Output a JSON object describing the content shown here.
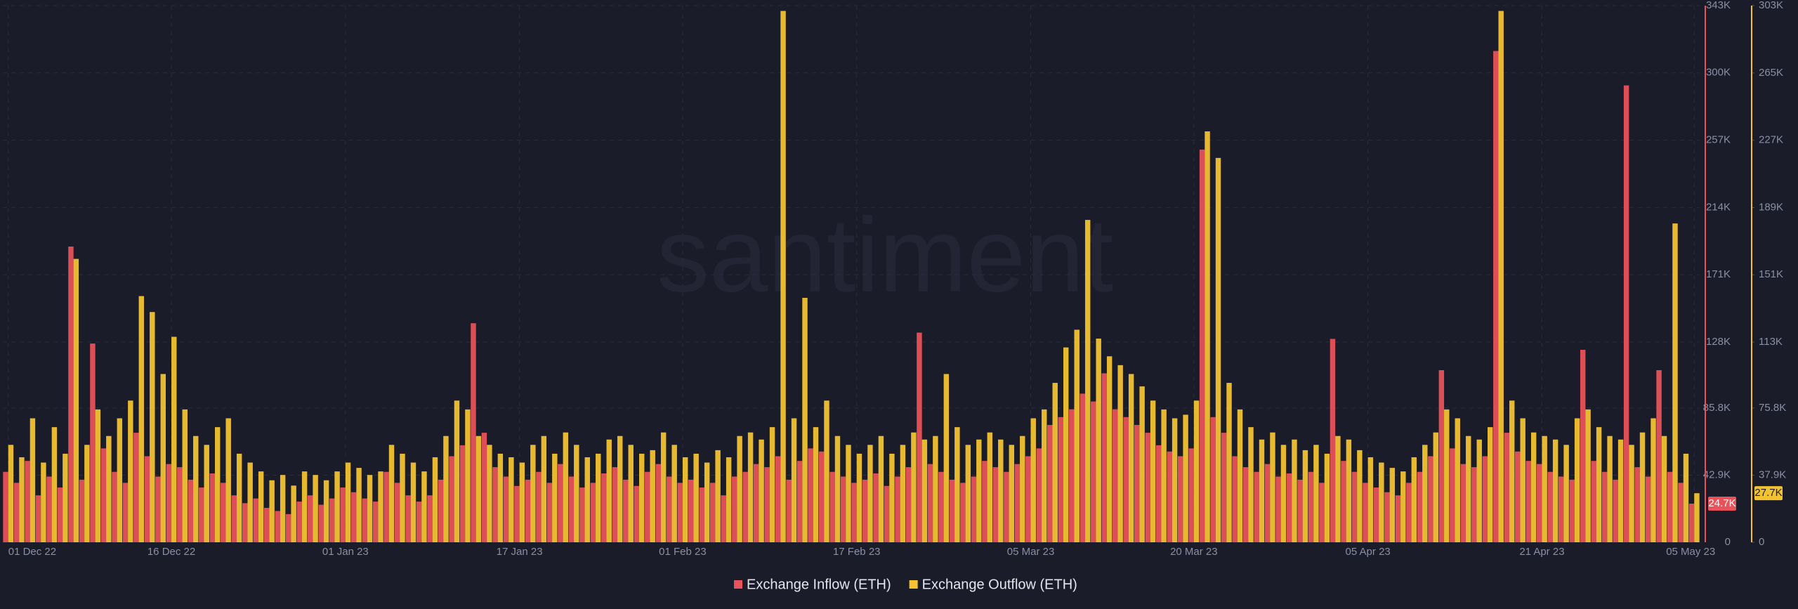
{
  "chart_data": {
    "type": "bar",
    "watermark": "santiment",
    "categories": [
      "01 Dec 22",
      null,
      null,
      null,
      null,
      null,
      null,
      null,
      null,
      null,
      null,
      null,
      null,
      null,
      null,
      "16 Dec 22",
      null,
      null,
      null,
      null,
      null,
      null,
      null,
      null,
      null,
      null,
      null,
      null,
      null,
      null,
      null,
      "01 Jan 23",
      null,
      null,
      null,
      null,
      null,
      null,
      null,
      null,
      null,
      null,
      null,
      null,
      null,
      null,
      null,
      "17 Jan 23",
      null,
      null,
      null,
      null,
      null,
      null,
      null,
      null,
      null,
      null,
      null,
      null,
      null,
      null,
      "01 Feb 23",
      null,
      null,
      null,
      null,
      null,
      null,
      null,
      null,
      null,
      null,
      null,
      null,
      null,
      null,
      null,
      "17 Feb 23",
      null,
      null,
      null,
      null,
      null,
      null,
      null,
      null,
      null,
      null,
      null,
      null,
      null,
      null,
      null,
      "05 Mar 23",
      null,
      null,
      null,
      null,
      null,
      null,
      null,
      null,
      null,
      null,
      null,
      null,
      null,
      null,
      "20 Mar 23",
      null,
      null,
      null,
      null,
      null,
      null,
      null,
      null,
      null,
      null,
      null,
      null,
      null,
      null,
      null,
      "05 Apr 23",
      null,
      null,
      null,
      null,
      null,
      null,
      null,
      null,
      null,
      null,
      null,
      null,
      null,
      null,
      null,
      "21 Apr 23",
      null,
      null,
      null,
      null,
      null,
      null,
      null,
      null,
      null,
      null,
      null,
      null,
      null,
      "05 May 23"
    ],
    "series": [
      {
        "name": "Exchange Inflow (ETH)",
        "color": "#e8525a",
        "current_label": "24.7K",
        "values": [
          45000,
          38000,
          52000,
          30000,
          42000,
          35000,
          189000,
          40000,
          127000,
          60000,
          45000,
          38000,
          70000,
          55000,
          42000,
          50000,
          48000,
          40000,
          35000,
          44000,
          38000,
          30000,
          25000,
          28000,
          22000,
          20000,
          18000,
          26000,
          30000,
          24000,
          28000,
          35000,
          32000,
          28000,
          26000,
          45000,
          38000,
          30000,
          26000,
          30000,
          40000,
          55000,
          62000,
          140000,
          70000,
          48000,
          42000,
          36000,
          40000,
          45000,
          38000,
          50000,
          42000,
          35000,
          38000,
          44000,
          48000,
          40000,
          36000,
          45000,
          50000,
          42000,
          38000,
          40000,
          35000,
          38000,
          30000,
          42000,
          45000,
          50000,
          48000,
          55000,
          40000,
          52000,
          60000,
          58000,
          45000,
          42000,
          38000,
          40000,
          44000,
          36000,
          42000,
          48000,
          134000,
          50000,
          45000,
          40000,
          38000,
          42000,
          52000,
          48000,
          45000,
          50000,
          55000,
          60000,
          75000,
          80000,
          85000,
          95000,
          90000,
          108000,
          85000,
          80000,
          75000,
          70000,
          62000,
          58000,
          55000,
          60000,
          251000,
          80000,
          70000,
          55000,
          48000,
          45000,
          50000,
          42000,
          44000,
          40000,
          45000,
          38000,
          130000,
          52000,
          45000,
          38000,
          35000,
          32000,
          30000,
          38000,
          45000,
          55000,
          110000,
          60000,
          50000,
          48000,
          55000,
          314000,
          70000,
          58000,
          52000,
          50000,
          45000,
          42000,
          40000,
          123000,
          52000,
          45000,
          40000,
          292000,
          48000,
          42000,
          110000,
          45000,
          38000,
          24700
        ]
      },
      {
        "name": "Exchange Outflow (ETH)",
        "color": "#f2c230",
        "axis": "y2",
        "current_label": "27.7K",
        "values": [
          55000,
          48000,
          70000,
          45000,
          65000,
          50000,
          160000,
          55000,
          75000,
          60000,
          70000,
          80000,
          139000,
          130000,
          95000,
          116000,
          75000,
          60000,
          55000,
          65000,
          70000,
          50000,
          45000,
          40000,
          35000,
          38000,
          32000,
          40000,
          38000,
          35000,
          40000,
          45000,
          42000,
          38000,
          40000,
          55000,
          50000,
          45000,
          40000,
          48000,
          60000,
          80000,
          75000,
          60000,
          55000,
          50000,
          48000,
          45000,
          55000,
          60000,
          50000,
          62000,
          55000,
          48000,
          50000,
          58000,
          60000,
          55000,
          50000,
          52000,
          62000,
          55000,
          48000,
          50000,
          45000,
          52000,
          48000,
          60000,
          62000,
          58000,
          65000,
          300000,
          70000,
          138000,
          65000,
          80000,
          60000,
          55000,
          50000,
          55000,
          60000,
          50000,
          55000,
          62000,
          58000,
          60000,
          95000,
          65000,
          55000,
          58000,
          62000,
          58000,
          55000,
          60000,
          70000,
          75000,
          90000,
          110000,
          120000,
          182000,
          115000,
          105000,
          100000,
          95000,
          88000,
          80000,
          75000,
          70000,
          72000,
          80000,
          232000,
          217000,
          90000,
          75000,
          65000,
          58000,
          62000,
          55000,
          58000,
          52000,
          55000,
          50000,
          60000,
          58000,
          52000,
          48000,
          45000,
          42000,
          40000,
          48000,
          55000,
          62000,
          75000,
          70000,
          60000,
          58000,
          65000,
          300000,
          80000,
          70000,
          62000,
          60000,
          58000,
          55000,
          70000,
          75000,
          65000,
          60000,
          58000,
          55000,
          62000,
          70000,
          60000,
          180000,
          50000,
          27700
        ]
      }
    ],
    "ylim": [
      0,
      343000
    ],
    "yticks": [
      0,
      {
        "value": 42900,
        "label": "42.9K"
      },
      {
        "value": 85800,
        "label": "85.8K"
      },
      {
        "value": 128000,
        "label": "128K"
      },
      {
        "value": 171000,
        "label": "171K"
      },
      {
        "value": 214000,
        "label": "214K"
      },
      {
        "value": 257000,
        "label": "257K"
      },
      {
        "value": 300000,
        "label": "300K"
      },
      {
        "value": 343000,
        "label": "343K"
      }
    ],
    "y2lim": [
      0,
      303000
    ],
    "y2ticks": [
      0,
      {
        "value": 37900,
        "label": "37.9K"
      },
      {
        "value": 75800,
        "label": "75.8K"
      },
      {
        "value": 113000,
        "label": "113K"
      },
      {
        "value": 151000,
        "label": "151K"
      },
      {
        "value": 189000,
        "label": "189K"
      },
      {
        "value": 227000,
        "label": "227K"
      },
      {
        "value": 265000,
        "label": "265K"
      },
      {
        "value": 303000,
        "label": "303K"
      }
    ],
    "grid": true
  }
}
